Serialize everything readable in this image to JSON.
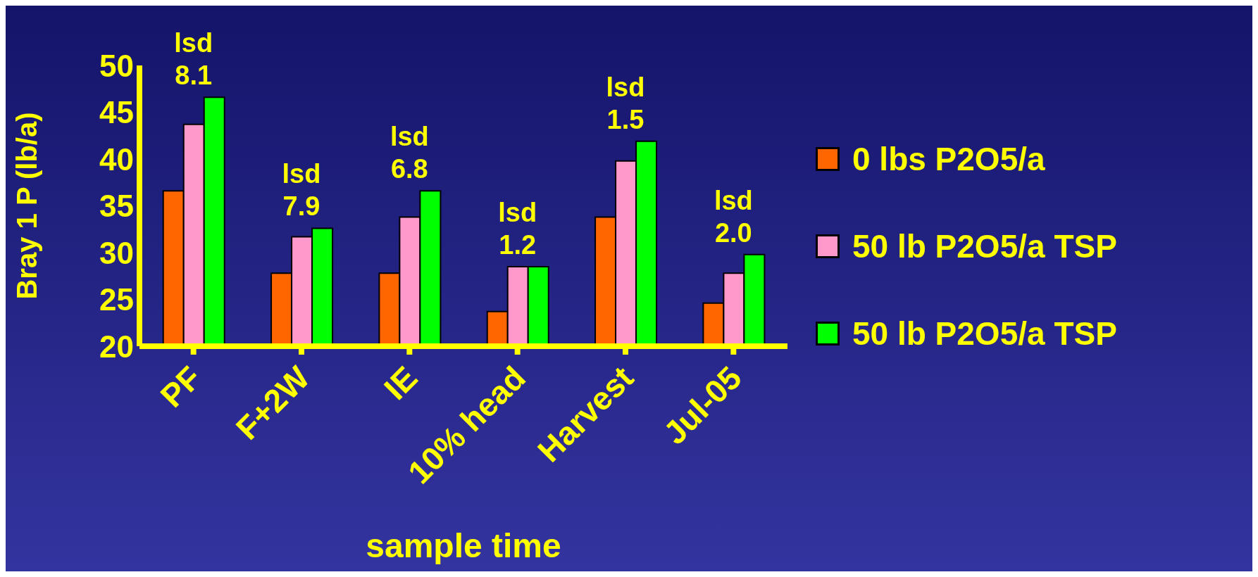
{
  "chart_data": {
    "type": "bar",
    "ylabel": "Bray 1 P (lb/a)",
    "xlabel": "sample time",
    "categories": [
      "PF",
      "F+2W",
      "IE",
      "10% head",
      "Harvest",
      "Jul-05"
    ],
    "series": [
      {
        "name": "0 lbs P2O5/a",
        "color": "#ff6600",
        "values": [
          36.6,
          27.8,
          27.8,
          23.7,
          33.8,
          24.6
        ]
      },
      {
        "name": "50 lb P2O5/a TSP",
        "color": "#ff99cc",
        "values": [
          43.7,
          31.7,
          33.8,
          28.5,
          39.8,
          27.8
        ]
      },
      {
        "name": "50 lb P2O5/a TSP",
        "color": "#00ff00",
        "values": [
          46.6,
          32.6,
          36.6,
          28.5,
          41.9,
          29.8
        ]
      }
    ],
    "ylim": [
      20,
      50
    ],
    "yticks": [
      20,
      25,
      30,
      35,
      40,
      45,
      50
    ],
    "grid": false,
    "legend": "right",
    "annotations": [
      "lsd\n8.1",
      "lsd\n7.9",
      "lsd\n6.8",
      "lsd\n1.2",
      "lsd\n1.5",
      "lsd\n2.0"
    ]
  }
}
